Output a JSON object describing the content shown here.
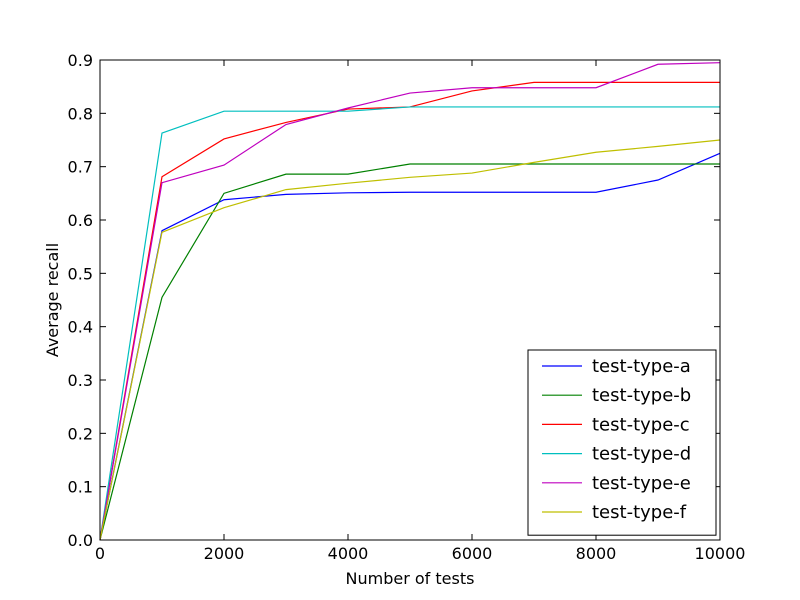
{
  "chart_data": {
    "type": "line",
    "title": "",
    "xlabel": "Number of tests",
    "ylabel": "Average recall",
    "xlim": [
      0,
      10000
    ],
    "ylim": [
      0.0,
      0.9
    ],
    "xticks": [
      0,
      2000,
      4000,
      6000,
      8000,
      10000
    ],
    "xtick_labels": [
      "0",
      "2000",
      "4000",
      "6000",
      "8000",
      "10000"
    ],
    "yticks": [
      0.0,
      0.1,
      0.2,
      0.3,
      0.4,
      0.5,
      0.6,
      0.7,
      0.8,
      0.9
    ],
    "ytick_labels": [
      "0.0",
      "0.1",
      "0.2",
      "0.3",
      "0.4",
      "0.5",
      "0.6",
      "0.7",
      "0.8",
      "0.9"
    ],
    "grid": false,
    "legend_position": "lower-right",
    "x": [
      0,
      1000,
      2000,
      3000,
      4000,
      5000,
      6000,
      7000,
      8000,
      9000,
      10000
    ],
    "series": [
      {
        "name": "test-type-a",
        "color": "#0000ff",
        "values": [
          0.0,
          0.58,
          0.638,
          0.648,
          0.651,
          0.652,
          0.652,
          0.652,
          0.652,
          0.675,
          0.725
        ]
      },
      {
        "name": "test-type-b",
        "color": "#008000",
        "values": [
          0.0,
          0.455,
          0.65,
          0.686,
          0.686,
          0.705,
          0.705,
          0.705,
          0.705,
          0.705,
          0.705
        ]
      },
      {
        "name": "test-type-c",
        "color": "#ff0000",
        "values": [
          0.0,
          0.681,
          0.752,
          0.783,
          0.808,
          0.812,
          0.842,
          0.858,
          0.858,
          0.858,
          0.858
        ]
      },
      {
        "name": "test-type-d",
        "color": "#00bfbf",
        "values": [
          0.0,
          0.763,
          0.804,
          0.804,
          0.804,
          0.812,
          0.812,
          0.812,
          0.812,
          0.812,
          0.812
        ]
      },
      {
        "name": "test-type-e",
        "color": "#bf00bf",
        "values": [
          0.0,
          0.67,
          0.703,
          0.779,
          0.81,
          0.838,
          0.848,
          0.848,
          0.848,
          0.892,
          0.895
        ]
      },
      {
        "name": "test-type-f",
        "color": "#bfbf00",
        "values": [
          0.0,
          0.577,
          0.623,
          0.657,
          0.669,
          0.68,
          0.688,
          0.708,
          0.727,
          0.738,
          0.75
        ]
      }
    ]
  }
}
